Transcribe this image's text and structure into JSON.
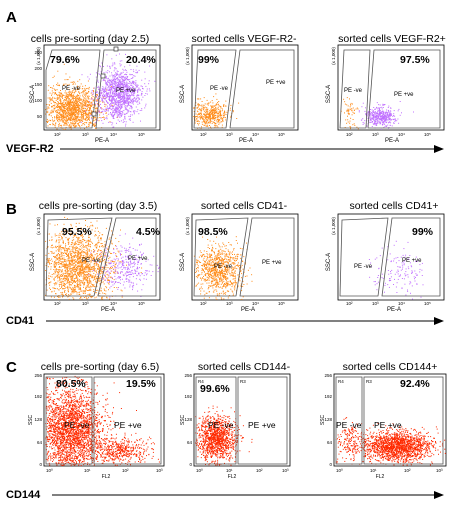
{
  "panels": [
    {
      "letter": "A",
      "marker": "VEGF-R2",
      "plots": [
        {
          "title": "cells pre-sorting (day 2.5)",
          "left_pct": "79.6%",
          "right_pct": "20.4%",
          "ylabel": "SSC-A",
          "ymult": "(x 1,000)",
          "xlabel": "PE-A",
          "neg_label": "PE -ve",
          "pos_label": "PE +ve"
        },
        {
          "title": "sorted cells VEGF-R2-",
          "left_pct": "99%",
          "right_pct": "",
          "ylabel": "SSC-A",
          "ymult": "(x 1,000)",
          "xlabel": "PE-A",
          "neg_label": "PE -ve",
          "pos_label": "PE +ve"
        },
        {
          "title": "sorted cells VEGF-R2+",
          "left_pct": "",
          "right_pct": "97.5%",
          "ylabel": "SSC-A",
          "ymult": "(x 1,000)",
          "xlabel": "PE-A",
          "neg_label": "PE -ve",
          "pos_label": "PE +ve"
        }
      ]
    },
    {
      "letter": "B",
      "marker": "CD41",
      "plots": [
        {
          "title": "cells pre-sorting (day 3.5)",
          "left_pct": "95.5%",
          "right_pct": "4.5%",
          "ylabel": "SSC-A",
          "ymult": "(x 1,000)",
          "xlabel": "PE-A",
          "neg_label": "PE -ve",
          "pos_label": "PE +ve"
        },
        {
          "title": "sorted cells CD41-",
          "left_pct": "98.5%",
          "right_pct": "",
          "ylabel": "SSC-A",
          "ymult": "(x 1,000)",
          "xlabel": "PE-A",
          "neg_label": "PE -ve",
          "pos_label": "PE +ve"
        },
        {
          "title": "sorted cells CD41+",
          "left_pct": "",
          "right_pct": "99%",
          "ylabel": "SSC-A",
          "ymult": "(x 1,000)",
          "xlabel": "PE-A",
          "neg_label": "PE -ve",
          "pos_label": "PE +ve"
        }
      ]
    },
    {
      "letter": "C",
      "marker": "CD144",
      "plots": [
        {
          "title": "cells pre-sorting (day 6.5)",
          "left_pct": "80.5%",
          "right_pct": "19.5%",
          "ylabel": "SSC",
          "ymult": "",
          "xlabel": "FL2",
          "neg_label": "PE -ve",
          "pos_label": "PE +ve"
        },
        {
          "title": "sorted cells CD144-",
          "left_pct": "99.6%",
          "right_pct": "",
          "ylabel": "SSC",
          "ymult": "",
          "xlabel": "FL2",
          "neg_label": "PE -ve",
          "pos_label": "PE +ve"
        },
        {
          "title": "sorted cells CD144+",
          "left_pct": "",
          "right_pct": "92.4%",
          "ylabel": "SSC",
          "ymult": "",
          "xlabel": "FL2",
          "neg_label": "PE -ve",
          "pos_label": "PE +ve"
        }
      ]
    }
  ],
  "tick_labels": {
    "log_x": [
      "10²",
      "10³",
      "10⁴",
      "10⁵"
    ],
    "ssc_a": [
      "50",
      "100",
      "150",
      "200",
      "250"
    ],
    "c_y": [
      "0",
      "64",
      "128",
      "192",
      "256"
    ],
    "c_x": [
      "10⁰",
      "10¹",
      "10²",
      "10³"
    ],
    "region_neg": "R4",
    "region_pos": "R3"
  },
  "colors": {
    "orange": "#ff8c1a",
    "purple": "#c070ff",
    "red": "#ff2a00",
    "gate": "#555555"
  }
}
